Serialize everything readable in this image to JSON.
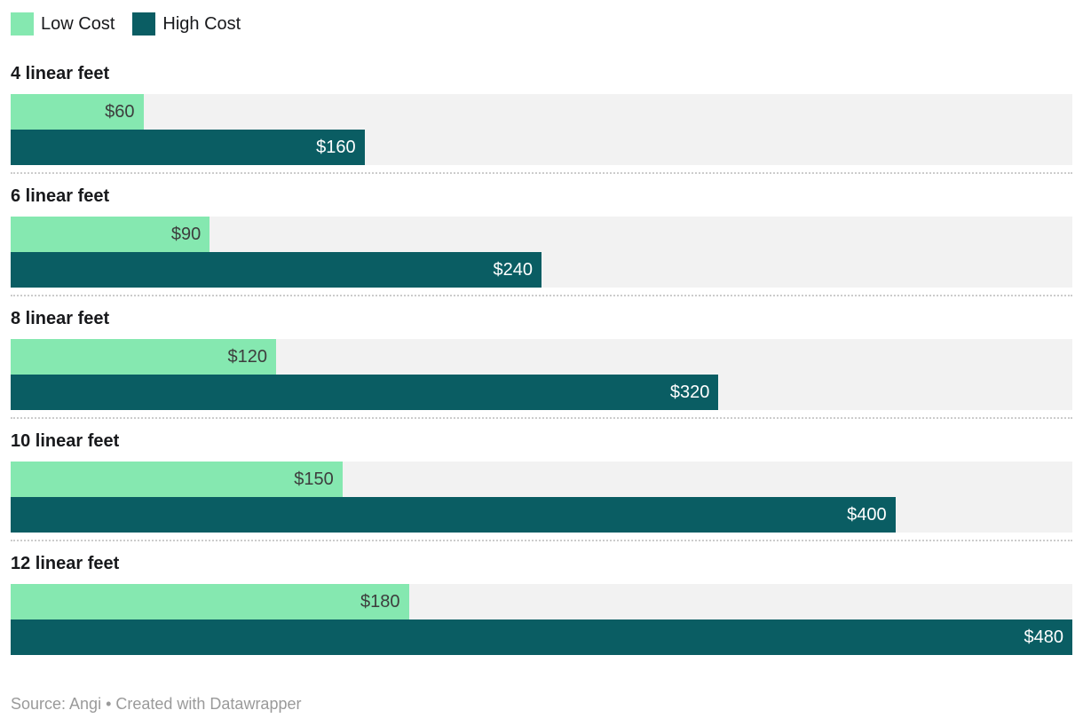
{
  "legend": {
    "items": [
      {
        "label": "Low Cost",
        "color": "#85e8b0"
      },
      {
        "label": "High Cost",
        "color": "#0a5d63"
      }
    ]
  },
  "chart_data": {
    "type": "bar",
    "orientation": "horizontal",
    "title": "",
    "categories": [
      "4 linear feet",
      "6 linear feet",
      "8 linear feet",
      "10 linear feet",
      "12 linear feet"
    ],
    "series": [
      {
        "name": "Low Cost",
        "color": "#85e8b0",
        "values": [
          60,
          90,
          120,
          150,
          180
        ],
        "labels": [
          "$60",
          "$90",
          "$120",
          "$150",
          "$180"
        ]
      },
      {
        "name": "High Cost",
        "color": "#0a5d63",
        "values": [
          160,
          240,
          320,
          400,
          480
        ],
        "labels": [
          "$160",
          "$240",
          "$320",
          "$400",
          "$480"
        ]
      }
    ],
    "xlim": [
      0,
      480
    ],
    "grid": false,
    "legend_position": "top",
    "track_color": "#f2f2f2",
    "separator_style": "dotted"
  },
  "footer": {
    "source_text": "Source: Angi • Created with Datawrapper"
  },
  "colors": {
    "low": "#85e8b0",
    "high": "#0a5d63",
    "track": "#f2f2f2",
    "label_on_low": "#3d3d3d",
    "label_on_high": "#ffffff",
    "heading_text": "#18191c",
    "separator": "#cccccc",
    "footer_text": "#9a9a9a"
  }
}
